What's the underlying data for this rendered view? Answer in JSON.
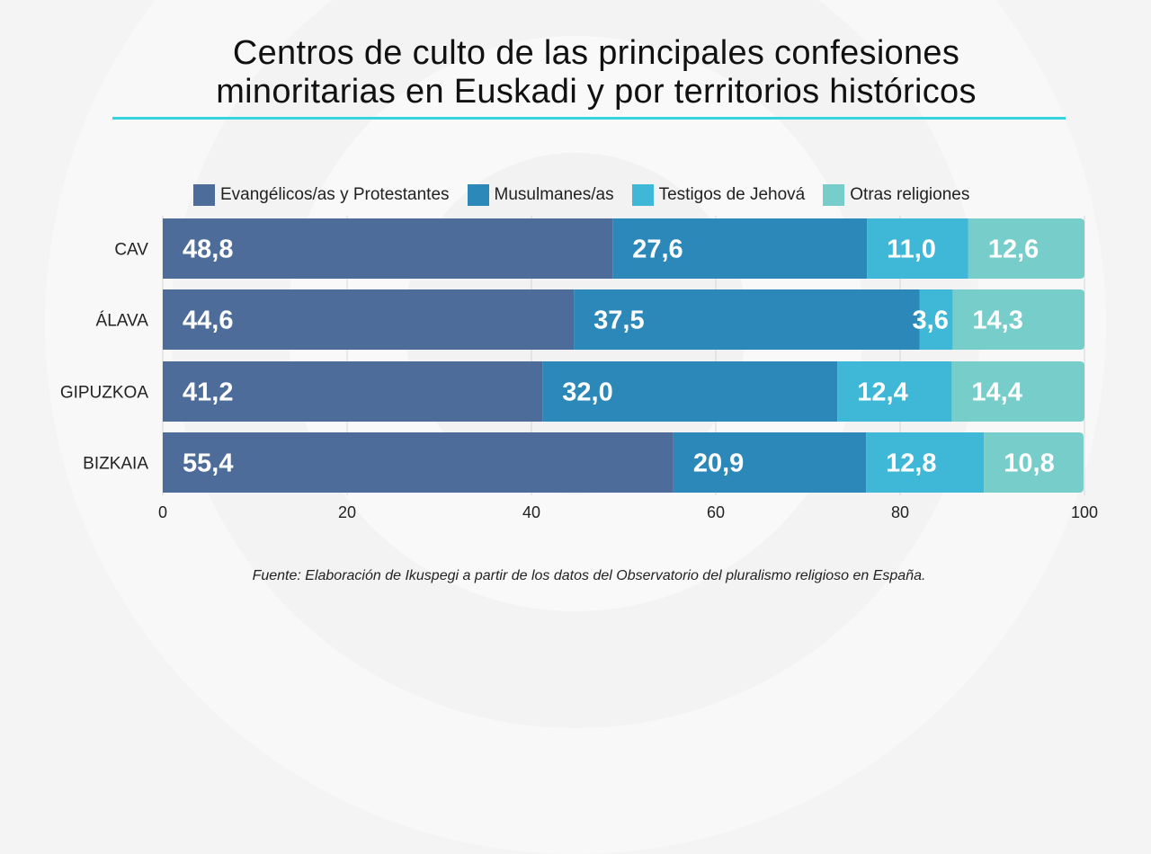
{
  "title_line1": "Centros de culto de las principales confesiones",
  "title_line2": "minoritarias en Euskadi y por territorios históricos",
  "source": "Fuente: Elaboración de Ikuspegi a partir de los datos del Observatorio del pluralismo religioso en España.",
  "chart_data": {
    "type": "bar",
    "orientation": "horizontal",
    "stacked": true,
    "categories": [
      "CAV",
      "ÁLAVA",
      "GIPUZKOA",
      "BIZKAIA"
    ],
    "series": [
      {
        "name": "Evangélicos/as y Protestantes",
        "color": "#4e6c99",
        "values": [
          48.8,
          44.6,
          41.2,
          55.4
        ],
        "labels": [
          "48,8",
          "44,6",
          "41,2",
          "55,4"
        ]
      },
      {
        "name": "Musulmanes/as",
        "color": "#2b88b8",
        "values": [
          27.6,
          37.5,
          32.0,
          20.9
        ],
        "labels": [
          "27,6",
          "37,5",
          "32,0",
          "20,9"
        ]
      },
      {
        "name": "Testigos de Jehová",
        "color": "#3fb8d8",
        "values": [
          11.0,
          3.6,
          12.4,
          12.8
        ],
        "labels": [
          "11,0",
          "3,6",
          "12,4",
          "12,8"
        ]
      },
      {
        "name": "Otras religiones",
        "color": "#76cdca",
        "values": [
          12.6,
          14.3,
          14.4,
          10.8
        ],
        "labels": [
          "12,6",
          "14,3",
          "14,4",
          "10,8"
        ]
      }
    ],
    "xlim": [
      0,
      100
    ],
    "xticks": [
      "0",
      "20",
      "40",
      "60",
      "80",
      "100"
    ],
    "grid": true,
    "legend_position": "top"
  }
}
